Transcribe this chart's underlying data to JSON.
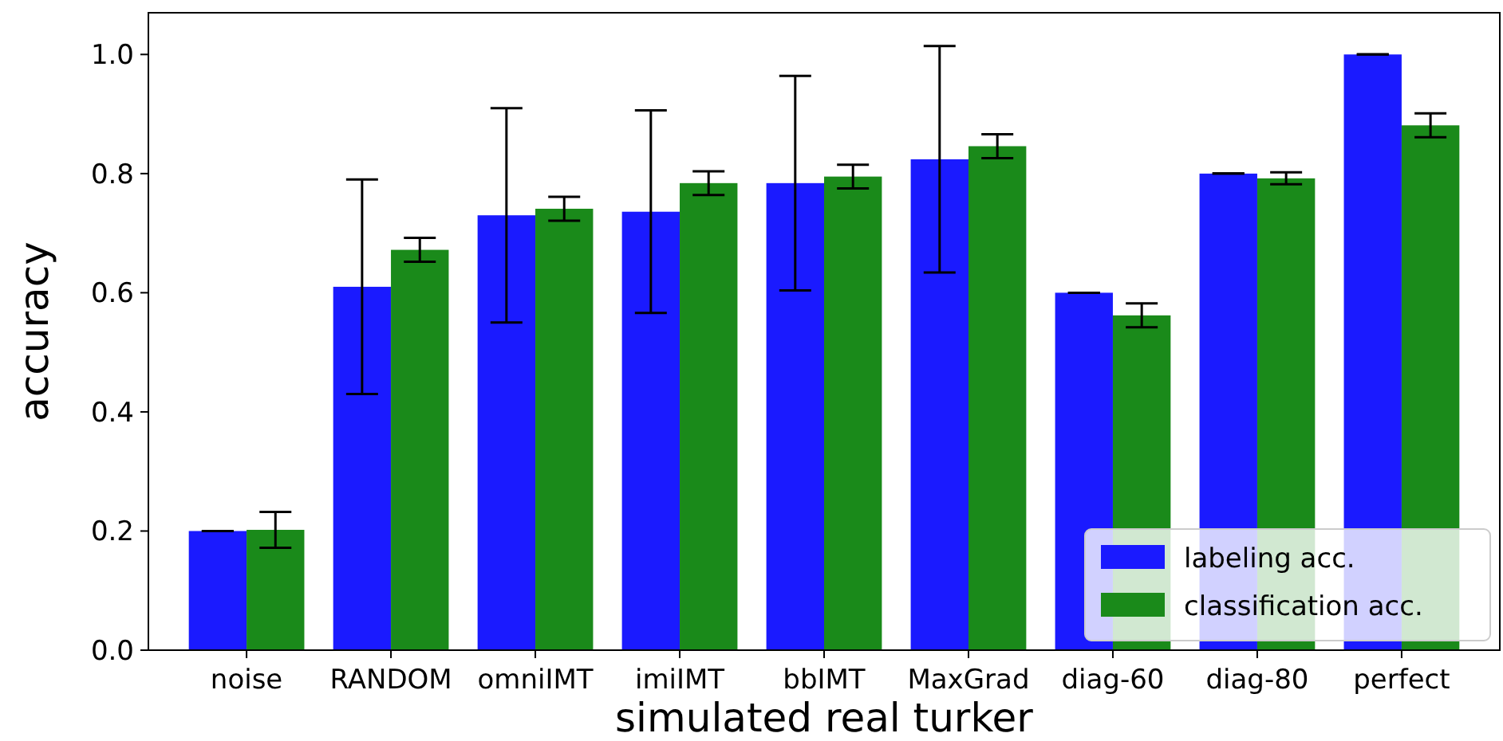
{
  "chart_data": {
    "type": "bar",
    "xlabel": "simulated real turker",
    "ylabel": "accuracy",
    "categories": [
      "noise",
      "RANDOM",
      "omniIMT",
      "imiIMT",
      "bbIMT",
      "MaxGrad",
      "diag-60",
      "diag-80",
      "perfect"
    ],
    "series": [
      {
        "name": "labeling acc.",
        "color": "#1a1aff",
        "values": [
          0.2,
          0.61,
          0.73,
          0.736,
          0.784,
          0.824,
          0.6,
          0.8,
          1.0
        ],
        "errors": [
          0,
          0.18,
          0.18,
          0.17,
          0.18,
          0.19,
          0,
          0,
          0
        ]
      },
      {
        "name": "classification acc.",
        "color": "#1a8a1a",
        "values": [
          0.202,
          0.672,
          0.741,
          0.784,
          0.795,
          0.846,
          0.562,
          0.792,
          0.881
        ],
        "errors": [
          0.03,
          0.02,
          0.02,
          0.02,
          0.02,
          0.02,
          0.02,
          0.01,
          0.02
        ]
      }
    ],
    "ylim": [
      0,
      1.07
    ],
    "yticks": [
      {
        "value": 0,
        "label": "0.0"
      },
      {
        "value": 0.2,
        "label": "0.2"
      },
      {
        "value": 0.4,
        "label": "0.4"
      },
      {
        "value": 0.6,
        "label": "0.6"
      },
      {
        "value": 0.8,
        "label": "0.8"
      },
      {
        "value": 1,
        "label": "1.0"
      }
    ],
    "grid": false,
    "legend": "bottom right"
  }
}
